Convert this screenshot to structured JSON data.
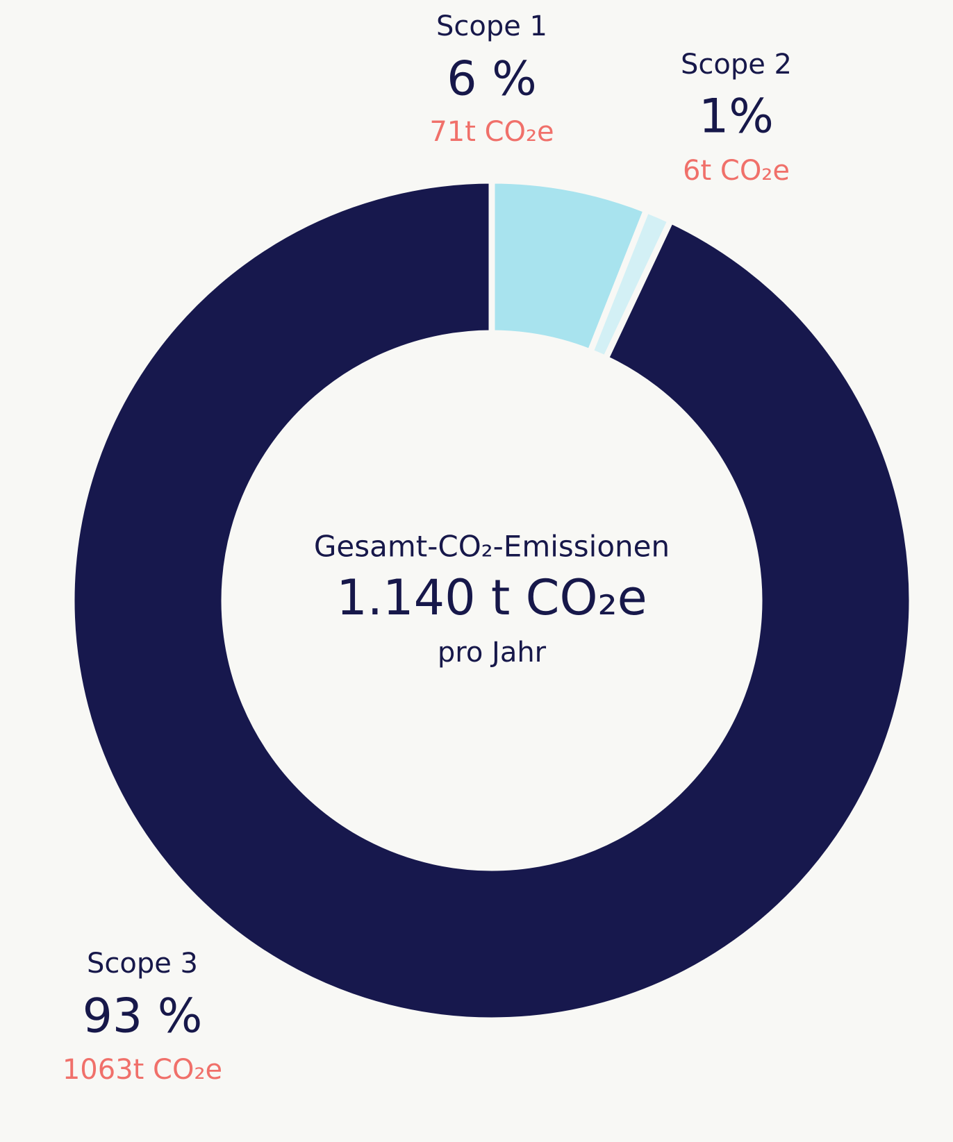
{
  "chart_data": {
    "type": "donut",
    "categories": [
      "Scope 1",
      "Scope 2",
      "Scope 3"
    ],
    "values": [
      6,
      1,
      93
    ],
    "value_labels": [
      "6 %",
      "1%",
      "93 %"
    ],
    "emission_labels": [
      "71t CO₂e",
      "6t CO₂e",
      "1063t CO₂e"
    ],
    "colors": [
      "#a8e3ee",
      "#d3f0f5",
      "#17184d"
    ],
    "center_title": "Gesamt-CO₂-Emissionen",
    "center_value": "1.140 t CO₂e",
    "center_subtitle": "pro Jahr"
  }
}
